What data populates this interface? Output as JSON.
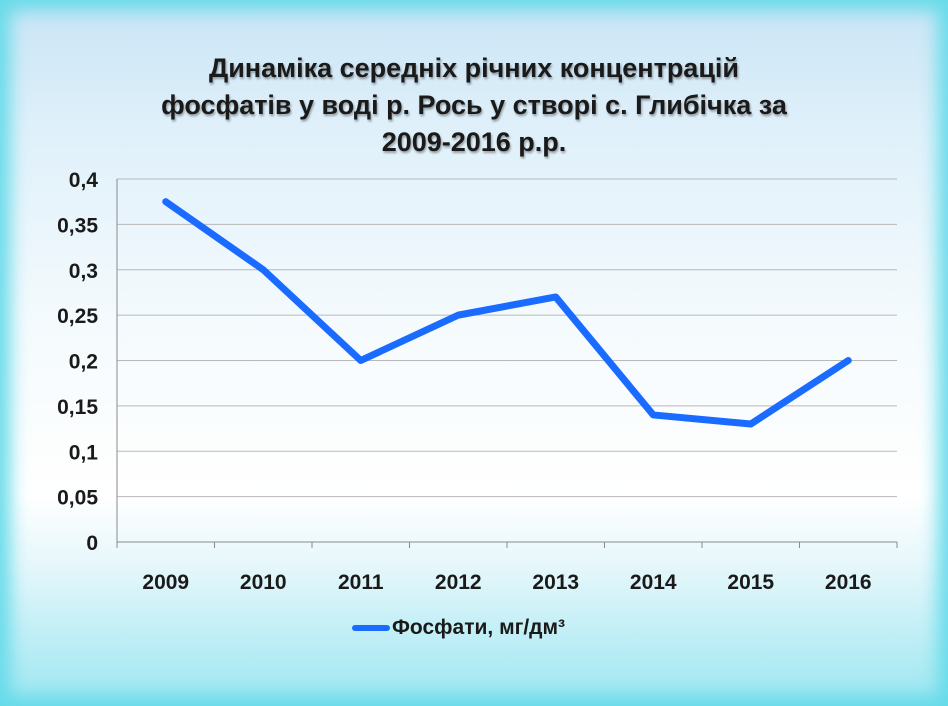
{
  "chart_data": {
    "type": "line",
    "title_lines": [
      "Динаміка середніх річних концентрацій",
      "фосфатів у воді р. Рось у створі с. Глибічка за",
      "2009-2016 р.р."
    ],
    "categories": [
      "2009",
      "2010",
      "2011",
      "2012",
      "2013",
      "2014",
      "2015",
      "2016"
    ],
    "series": [
      {
        "name": "Фосфати, мг/дм³",
        "values": [
          0.375,
          0.3,
          0.2,
          0.25,
          0.27,
          0.14,
          0.13,
          0.2
        ],
        "color": "#1a6bff"
      }
    ],
    "ylim": [
      0,
      0.4
    ],
    "yticks": [
      "0",
      "0,05",
      "0,1",
      "0,15",
      "0,2",
      "0,25",
      "0,3",
      "0,35",
      "0,4"
    ],
    "grid": true,
    "legend_position": "bottom"
  }
}
